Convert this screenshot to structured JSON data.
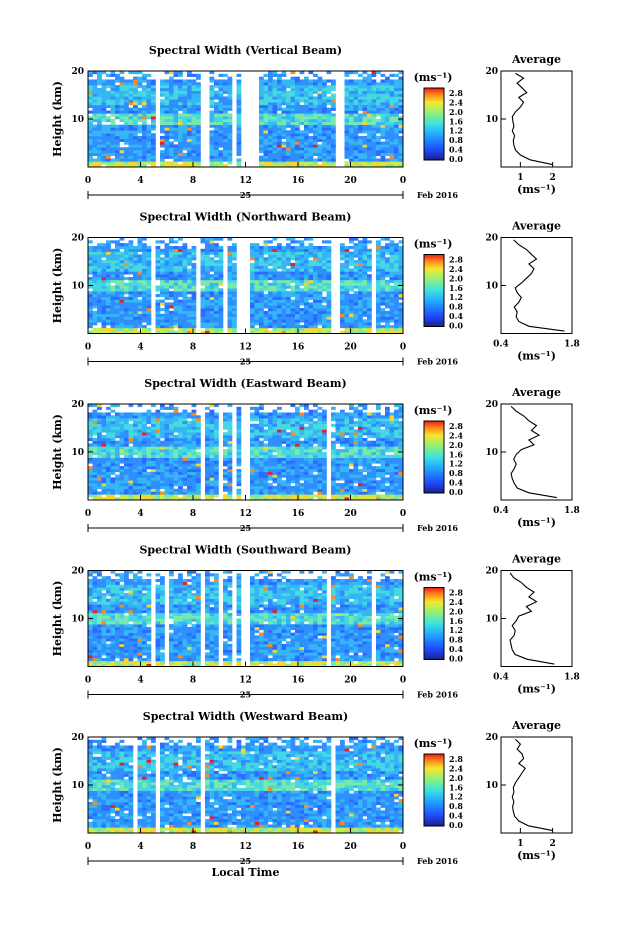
{
  "chart_data": [
    {
      "type": "heatmap",
      "title": "Spectral Width (Vertical Beam)",
      "ylabel": "Height (km)",
      "y_ticks": [
        "20",
        "10"
      ],
      "x_ticks": [
        "0",
        "4",
        "8",
        "12",
        "16",
        "20",
        "0"
      ],
      "xlim": [
        0,
        24
      ],
      "ylim": [
        0,
        20
      ],
      "day_label": "25",
      "date_label": "Feb 2016",
      "colorbar_unit": "(ms⁻¹)",
      "colorbar_ticks": [
        "2.8",
        "2.4",
        "2.0",
        "1.6",
        "1.2",
        "0.8",
        "0.4",
        "0.0"
      ],
      "avg_title": "Average",
      "avg_xlabel": "(ms⁻¹)",
      "avg_x_ticks": [
        "1",
        "2"
      ],
      "avg_xlim": [
        0.4,
        2.6
      ],
      "avg_y_ticks": [
        "20",
        "10"
      ],
      "gaps": [
        [
          5.2,
          5.4
        ],
        [
          8.4,
          9.1
        ],
        [
          11.0,
          11.3
        ],
        [
          11.8,
          12.9
        ],
        [
          18.8,
          19.5
        ],
        [
          22.2,
          22.4
        ]
      ],
      "profile": [
        2.0,
        1.3,
        1.0,
        0.85,
        0.8,
        0.78,
        0.82,
        0.75,
        0.8,
        0.77,
        0.75,
        0.85,
        1.0,
        1.1,
        0.95,
        1.2,
        1.05,
        0.9,
        1.1,
        0.85
      ]
    },
    {
      "type": "heatmap",
      "title": "Spectral Width (Northward Beam)",
      "ylabel": "Height (km)",
      "y_ticks": [
        "20",
        "10"
      ],
      "x_ticks": [
        "0",
        "4",
        "8",
        "12",
        "16",
        "20",
        "0"
      ],
      "xlim": [
        0,
        24
      ],
      "ylim": [
        0,
        20
      ],
      "day_label": "25",
      "date_label": "Feb 2016",
      "colorbar_unit": "(ms⁻¹)",
      "colorbar_ticks": [
        "2.8",
        "2.4",
        "2.0",
        "1.6",
        "1.2",
        "0.8",
        "0.4",
        "0.0"
      ],
      "avg_title": "Average",
      "avg_xlabel": "(ms⁻¹)",
      "avg_x_ticks": [
        "0.4",
        "1.8"
      ],
      "avg_xlim": [
        0.4,
        1.8
      ],
      "avg_y_ticks": [
        "20",
        "10"
      ],
      "gaps": [
        [
          4.9,
          5.3
        ],
        [
          8.3,
          8.7
        ],
        [
          10.4,
          10.6
        ],
        [
          11.4,
          12.4
        ],
        [
          18.5,
          19.2
        ],
        [
          21.5,
          21.8
        ]
      ],
      "profile": [
        1.65,
        0.95,
        0.75,
        0.7,
        0.72,
        0.66,
        0.75,
        0.8,
        0.72,
        0.68,
        0.8,
        0.9,
        1.0,
        1.05,
        0.95,
        1.1,
        1.0,
        0.9,
        0.75,
        0.65
      ]
    },
    {
      "type": "heatmap",
      "title": "Spectral Width (Eastward Beam)",
      "ylabel": "Height (km)",
      "y_ticks": [
        "20",
        "10"
      ],
      "x_ticks": [
        "0",
        "4",
        "8",
        "12",
        "16",
        "20",
        "0"
      ],
      "xlim": [
        0,
        24
      ],
      "ylim": [
        0,
        20
      ],
      "day_label": "25",
      "date_label": "Feb 2016",
      "colorbar_unit": "(ms⁻¹)",
      "colorbar_ticks": [
        "2.8",
        "2.4",
        "2.0",
        "1.6",
        "1.2",
        "0.8",
        "0.4",
        "0.0"
      ],
      "avg_title": "Average",
      "avg_xlabel": "(ms⁻¹)",
      "avg_x_ticks": [
        "0.4",
        "1.8"
      ],
      "avg_xlim": [
        0.4,
        1.8
      ],
      "avg_y_ticks": [
        "20",
        "10"
      ],
      "gaps": [
        [
          4.3,
          4.6
        ],
        [
          8.5,
          8.8
        ],
        [
          9.9,
          10.2
        ],
        [
          10.9,
          11.2
        ],
        [
          11.6,
          12.4
        ],
        [
          18.1,
          18.5
        ]
      ],
      "profile": [
        1.5,
        0.95,
        0.72,
        0.66,
        0.62,
        0.6,
        0.66,
        0.7,
        0.65,
        0.7,
        0.8,
        1.05,
        0.95,
        1.15,
        1.0,
        1.1,
        0.95,
        0.85,
        0.7,
        0.6
      ]
    },
    {
      "type": "heatmap",
      "title": "Spectral Width (Southward Beam)",
      "ylabel": "Height (km)",
      "y_ticks": [
        "20",
        "10"
      ],
      "x_ticks": [
        "0",
        "4",
        "8",
        "12",
        "16",
        "20",
        "0"
      ],
      "xlim": [
        0,
        24
      ],
      "ylim": [
        0,
        20
      ],
      "day_label": "25",
      "date_label": "Feb 2016",
      "colorbar_unit": "(ms⁻¹)",
      "colorbar_ticks": [
        "2.8",
        "2.4",
        "2.0",
        "1.6",
        "1.2",
        "0.8",
        "0.4",
        "0.0"
      ],
      "avg_title": "Average",
      "avg_xlabel": "(ms⁻¹)",
      "avg_x_ticks": [
        "0.4",
        "1.8"
      ],
      "avg_xlim": [
        0.4,
        1.8
      ],
      "avg_y_ticks": [
        "20",
        "10"
      ],
      "gaps": [
        [
          4.9,
          5.2
        ],
        [
          5.8,
          6.1
        ],
        [
          8.5,
          8.8
        ],
        [
          9.9,
          10.2
        ],
        [
          10.9,
          11.2
        ],
        [
          11.6,
          12.4
        ],
        [
          18.1,
          18.5
        ],
        [
          21.6,
          21.9
        ]
      ],
      "profile": [
        1.45,
        0.92,
        0.68,
        0.62,
        0.6,
        0.58,
        0.66,
        0.68,
        0.62,
        0.7,
        0.75,
        1.0,
        0.9,
        1.1,
        0.95,
        1.05,
        0.9,
        0.8,
        0.65,
        0.58
      ]
    },
    {
      "type": "heatmap",
      "title": "Spectral Width (Westward Beam)",
      "ylabel": "Height (km)",
      "xlabel": "Local Time",
      "y_ticks": [
        "20",
        "10"
      ],
      "x_ticks": [
        "0",
        "4",
        "8",
        "12",
        "16",
        "20",
        "0"
      ],
      "xlim": [
        0,
        24
      ],
      "ylim": [
        0,
        20
      ],
      "day_label": "25",
      "date_label": "Feb 2016",
      "colorbar_unit": "(ms⁻¹)",
      "colorbar_ticks": [
        "2.8",
        "2.4",
        "2.0",
        "1.6",
        "1.2",
        "0.8",
        "0.4",
        "0.0"
      ],
      "avg_title": "Average",
      "avg_xlabel": "(ms⁻¹)",
      "avg_x_ticks": [
        "1",
        "2"
      ],
      "avg_xlim": [
        0.4,
        2.6
      ],
      "avg_y_ticks": [
        "20",
        "10"
      ],
      "gaps": [
        [
          3.5,
          3.7
        ],
        [
          5.3,
          5.6
        ],
        [
          8.6,
          8.9
        ],
        [
          11.6,
          11.8
        ],
        [
          18.6,
          19.0
        ]
      ],
      "profile": [
        2.0,
        1.25,
        0.95,
        0.82,
        0.78,
        0.76,
        0.8,
        0.75,
        0.8,
        0.78,
        0.85,
        0.95,
        1.05,
        1.15,
        0.95,
        1.1,
        1.05,
        0.9,
        1.0,
        0.85
      ]
    }
  ]
}
